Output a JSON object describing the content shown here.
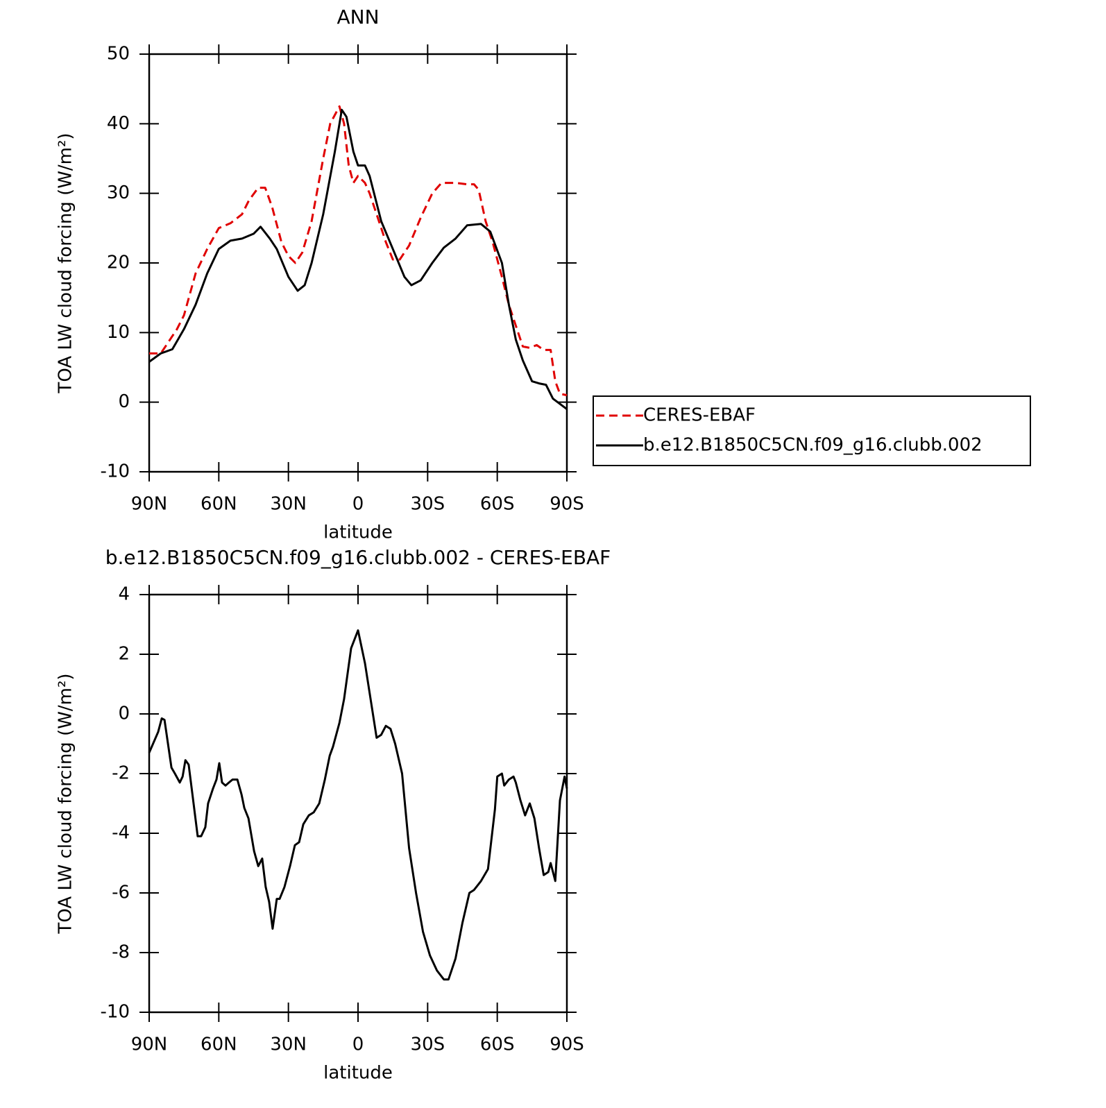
{
  "chart_data": [
    {
      "type": "line",
      "title": "ANN",
      "xlabel": "latitude",
      "ylabel": "TOA LW cloud forcing (W/m²)",
      "xlim": [
        90,
        -90
      ],
      "xticks": [
        {
          "value": 90,
          "label": "90N"
        },
        {
          "value": 60,
          "label": "60N"
        },
        {
          "value": 30,
          "label": "30N"
        },
        0,
        {
          "value": -30,
          "label": "30S"
        },
        {
          "value": -60,
          "label": "60S"
        },
        {
          "value": -90,
          "label": "90S"
        }
      ],
      "ylim": [
        -10,
        50
      ],
      "yticks": [
        -10,
        0,
        10,
        20,
        30,
        40,
        50
      ],
      "legend": "right",
      "series": [
        {
          "name": "CERES-EBAF",
          "color": "#e00000",
          "line_style": "dashed",
          "x": [
            90,
            85,
            82,
            78,
            75,
            70,
            65,
            60,
            55,
            50,
            47,
            43,
            40,
            37,
            33,
            30,
            27,
            24,
            20,
            15,
            12,
            8,
            6,
            4,
            2,
            0,
            -3,
            -5,
            -8,
            -12,
            -15,
            -18,
            -22,
            -27,
            -32,
            -36,
            -42,
            -47,
            -50,
            -52,
            -55,
            -58,
            -62,
            -65,
            -68,
            -71,
            -74,
            -77,
            -80,
            -83,
            -85,
            -87,
            -90
          ],
          "values": [
            7,
            7,
            8.5,
            10.5,
            12.5,
            18.5,
            22,
            25,
            25.7,
            27,
            29,
            30.8,
            30.8,
            28,
            23,
            21,
            20,
            21.5,
            26,
            35,
            40,
            42.5,
            40,
            34,
            31.5,
            32.5,
            31.5,
            30,
            27,
            23,
            20.5,
            20.5,
            22.5,
            26.5,
            30,
            31.5,
            31.5,
            31.3,
            31.3,
            30.5,
            26,
            23,
            18,
            14,
            11,
            8,
            7.8,
            8.2,
            7.5,
            7.5,
            3,
            1.2,
            1
          ]
        },
        {
          "name": "b.e12.B1850C5CN.f09_g16.clubb.002",
          "color": "#000000",
          "line_style": "solid",
          "x": [
            90,
            85,
            80,
            75,
            70,
            65,
            60,
            55,
            50,
            45,
            42,
            38,
            35,
            30,
            26,
            23,
            20,
            15,
            10,
            7,
            5,
            2,
            0,
            -3,
            -5,
            -10,
            -15,
            -20,
            -23,
            -27,
            -32,
            -37,
            -42,
            -47,
            -50,
            -53,
            -57,
            -62,
            -65,
            -68,
            -71,
            -75,
            -78,
            -81,
            -84,
            -90
          ],
          "values": [
            5.8,
            7,
            7.6,
            10.5,
            14,
            18.5,
            22,
            23.2,
            23.5,
            24.2,
            25.2,
            23.5,
            22,
            18,
            16,
            16.8,
            20,
            27,
            36,
            42,
            41,
            36,
            34,
            34,
            32.5,
            26,
            22,
            18,
            16.8,
            17.5,
            20,
            22.2,
            23.5,
            25.4,
            25.5,
            25.6,
            24.5,
            20,
            14,
            9,
            6,
            3,
            2.7,
            2.5,
            0.5,
            -1
          ]
        }
      ]
    },
    {
      "type": "line",
      "title": "b.e12.B1850C5CN.f09_g16.clubb.002 - CERES-EBAF",
      "xlabel": "latitude",
      "ylabel": "TOA LW cloud forcing (W/m²)",
      "xlim": [
        90,
        -90
      ],
      "xticks": [
        {
          "value": 90,
          "label": "90N"
        },
        {
          "value": 60,
          "label": "60N"
        },
        {
          "value": 30,
          "label": "30N"
        },
        0,
        {
          "value": -30,
          "label": "30S"
        },
        {
          "value": -60,
          "label": "60S"
        },
        {
          "value": -90,
          "label": "90S"
        }
      ],
      "ylim": [
        -10,
        4
      ],
      "yticks": [
        -10,
        -8,
        -6,
        -4,
        -2,
        0,
        2,
        4
      ],
      "series": [
        {
          "color": "#000000",
          "line_style": "solid",
          "x": [
            90,
            86.1,
            84.6,
            83.4,
            81.9,
            80.4,
            78.9,
            76.8,
            75.6,
            74.4,
            73,
            71.2,
            69.1,
            67.6,
            65.8,
            64.6,
            62.5,
            61,
            59.8,
            58.6,
            57.1,
            55.6,
            54.1,
            52,
            50.2,
            49,
            47.2,
            44.8,
            43,
            41.3,
            39.8,
            38.3,
            36.8,
            35,
            33.8,
            31.7,
            29.3,
            27.2,
            25.4,
            23.6,
            21.2,
            19.1,
            16.7,
            14.3,
            12.2,
            10.8,
            8,
            6,
            3,
            0,
            -3,
            -6,
            -8,
            -10,
            -12,
            -14,
            -16,
            -19,
            -22,
            -25,
            -28,
            -31,
            -34,
            -37,
            -39,
            -42,
            -45,
            -48,
            -50,
            -53,
            -56,
            -59,
            -60,
            -62,
            -63,
            -65,
            -67,
            -68,
            -70,
            -72,
            -74,
            -76,
            -78,
            -80,
            -82,
            -83,
            -85,
            -87,
            -89,
            -90
          ],
          "values": [
            -1.3,
            -0.6,
            -0.15,
            -0.2,
            -1,
            -1.8,
            -2,
            -2.3,
            -2.1,
            -1.55,
            -1.7,
            -2.8,
            -4.1,
            -4.1,
            -3.8,
            -3,
            -2.5,
            -2.2,
            -1.65,
            -2.3,
            -2.4,
            -2.3,
            -2.2,
            -2.2,
            -2.7,
            -3.15,
            -3.5,
            -4.6,
            -5.1,
            -4.85,
            -5.8,
            -6.3,
            -7.2,
            -6.2,
            -6.2,
            -5.8,
            -5.1,
            -4.4,
            -4.3,
            -3.7,
            -3.4,
            -3.3,
            -3,
            -2.2,
            -1.4,
            -1.1,
            -0.3,
            0.5,
            2.2,
            2.8,
            1.7,
            0.2,
            -0.8,
            -0.7,
            -0.4,
            -0.5,
            -1,
            -2,
            -4.5,
            -6,
            -7.3,
            -8.1,
            -8.6,
            -8.9,
            -8.9,
            -8.2,
            -7,
            -6,
            -5.9,
            -5.6,
            -5.2,
            -3.2,
            -2.1,
            -2,
            -2.4,
            -2.2,
            -2.1,
            -2.3,
            -2.9,
            -3.4,
            -3,
            -3.5,
            -4.5,
            -5.4,
            -5.3,
            -5,
            -5.6,
            -2.9,
            -2.1,
            -2.5
          ]
        }
      ]
    }
  ]
}
